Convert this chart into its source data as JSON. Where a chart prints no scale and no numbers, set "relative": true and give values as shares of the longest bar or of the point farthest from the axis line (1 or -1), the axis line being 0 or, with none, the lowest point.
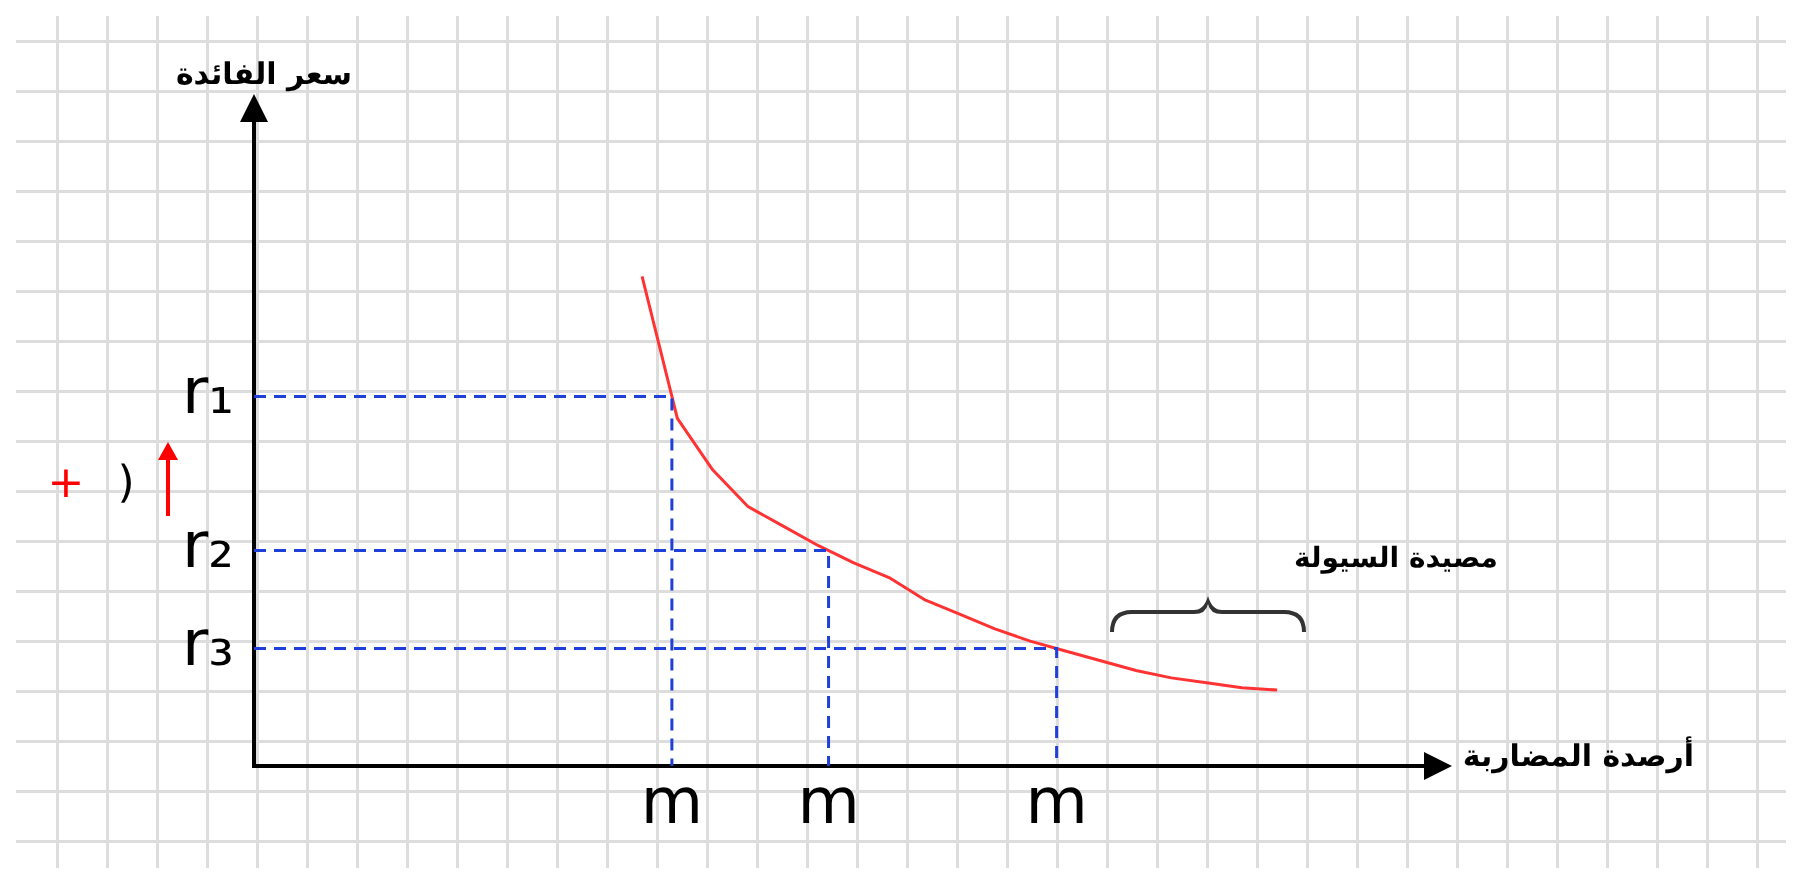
{
  "chart_data": {
    "type": "line",
    "relative": true,
    "categories": [
      null,
      null,
      null,
      null,
      null,
      null,
      null,
      null,
      null,
      null,
      null,
      null,
      null,
      null,
      null,
      null,
      null,
      null,
      null
    ],
    "legend": false,
    "marker": "none",
    "annotations": [
      "سعر الفائدة",
      "أرصدة المضاربة",
      "مصيدة السيولة",
      "+",
      ")",
      "m",
      "m",
      "m"
    ],
    "ref_lines": [
      {
        "axis": "y",
        "value": 0.755,
        "label": "r₁",
        "color": "#1f3fd9",
        "line_style": "dashed"
      },
      {
        "axis": "y",
        "value": 0.44,
        "label": "r₂",
        "color": "#1f3fd9",
        "line_style": "dashed"
      },
      {
        "axis": "y",
        "value": 0.24,
        "label": "r₃",
        "color": "#1f3fd9",
        "line_style": "dashed"
      }
    ],
    "series": [
      {
        "color": "#ff3333",
        "values": [
          1,
          0.71,
          0.605,
          0.53,
          0.49,
          0.45,
          0.415,
          0.385,
          0.34,
          0.31,
          0.28,
          0.255,
          0.235,
          0.215,
          0.195,
          0.18,
          0.17,
          0.16,
          0.155
        ]
      }
    ]
  }
}
